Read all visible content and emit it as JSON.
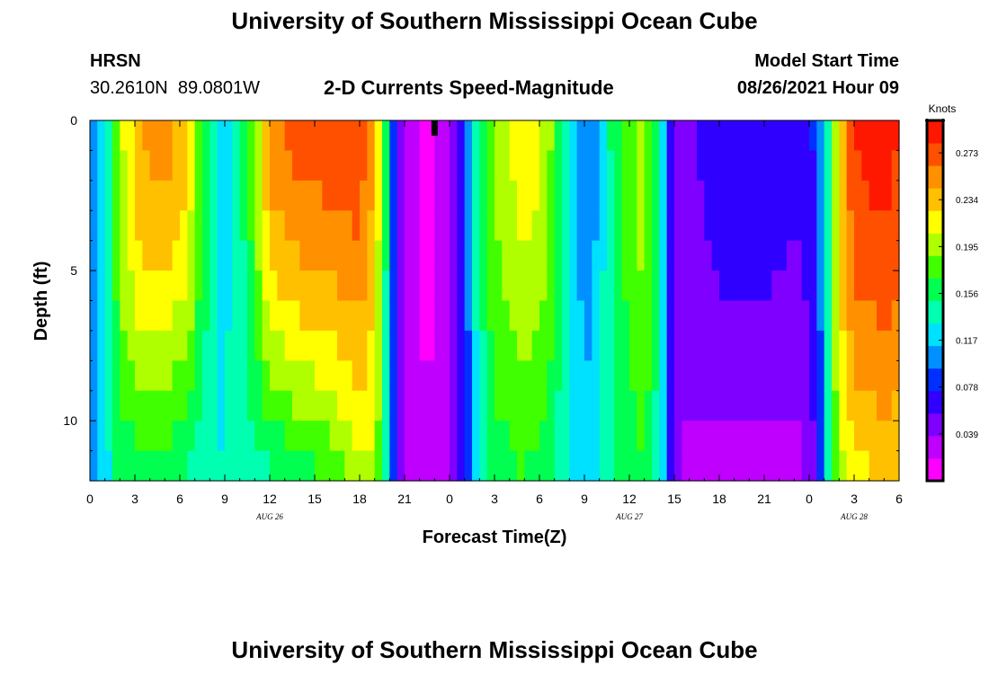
{
  "header": {
    "title": "University of Southern Mississippi Ocean Cube",
    "station": "HRSN",
    "coords": "30.2610N  89.0801W",
    "plot_title": "2-D Currents Speed-Magnitude",
    "model_label": "Model Start Time",
    "model_time": "08/26/2021 Hour 09"
  },
  "footer": {
    "title": "University of Southern Mississippi Ocean Cube"
  },
  "chart_data": {
    "type": "heatmap",
    "title": "2-D Currents Speed-Magnitude",
    "xlabel": "Forecast Time(Z)",
    "ylabel": "Depth (ft)",
    "x_tick_labels": [
      "0",
      "3",
      "6",
      "9",
      "12",
      "15",
      "18",
      "21",
      "0",
      "3",
      "6",
      "9",
      "12",
      "15",
      "18",
      "21",
      "0",
      "3",
      "6"
    ],
    "x_range_hours": [
      0,
      54
    ],
    "date_labels": [
      {
        "text": "AUG 26",
        "hour": 12
      },
      {
        "text": "AUG 27",
        "hour": 36
      },
      {
        "text": "AUG 28",
        "hour": 51
      }
    ],
    "y_tick_labels": [
      "0",
      "5",
      "10"
    ],
    "y_range_ft": [
      0,
      12
    ],
    "marker_hour": 23,
    "colorbar": {
      "unit": "Knots",
      "range": [
        0.0,
        0.3
      ],
      "tick_labels": [
        "0.273",
        "0.234",
        "0.195",
        "0.156",
        "0.117",
        "0.078",
        "0.039"
      ],
      "colors": [
        "#ff00ff",
        "#bf00ff",
        "#7f00ff",
        "#3000ff",
        "#0030ff",
        "#0090ff",
        "#00e0ff",
        "#00ffb0",
        "#00ff50",
        "#40ff00",
        "#b0ff00",
        "#ffff00",
        "#ffc000",
        "#ff9000",
        "#ff5000",
        "#ff1800"
      ]
    },
    "depth_levels_ft": [
      0.5,
      1.5,
      2.5,
      3.5,
      4.5,
      5.5,
      6.5,
      7.5,
      8.5,
      9.5,
      10.5,
      11.5
    ],
    "time_profiles": [
      {
        "hour": 0.0,
        "surface": 0.09,
        "bottom": 0.09
      },
      {
        "hour": 1.0,
        "surface": 0.12,
        "bottom": 0.12
      },
      {
        "hour": 2.0,
        "surface": 0.2,
        "bottom": 0.16
      },
      {
        "hour": 3.5,
        "surface": 0.245,
        "bottom": 0.16
      },
      {
        "hour": 5.0,
        "surface": 0.25,
        "bottom": 0.16
      },
      {
        "hour": 6.5,
        "surface": 0.23,
        "bottom": 0.15
      },
      {
        "hour": 7.5,
        "surface": 0.17,
        "bottom": 0.14
      },
      {
        "hour": 8.5,
        "surface": 0.125,
        "bottom": 0.13
      },
      {
        "hour": 9.5,
        "surface": 0.13,
        "bottom": 0.135
      },
      {
        "hour": 10.5,
        "surface": 0.16,
        "bottom": 0.14
      },
      {
        "hour": 12.0,
        "surface": 0.25,
        "bottom": 0.15
      },
      {
        "hour": 13.5,
        "surface": 0.265,
        "bottom": 0.16
      },
      {
        "hour": 15.5,
        "surface": 0.27,
        "bottom": 0.17
      },
      {
        "hour": 18.0,
        "surface": 0.275,
        "bottom": 0.2
      },
      {
        "hour": 19.0,
        "surface": 0.24,
        "bottom": 0.2
      },
      {
        "hour": 19.7,
        "surface": 0.16,
        "bottom": 0.15
      },
      {
        "hour": 20.2,
        "surface": 0.08,
        "bottom": 0.08
      },
      {
        "hour": 21.0,
        "surface": 0.035,
        "bottom": 0.035
      },
      {
        "hour": 22.5,
        "surface": 0.01,
        "bottom": 0.02
      },
      {
        "hour": 24.0,
        "surface": 0.03,
        "bottom": 0.035
      },
      {
        "hour": 25.0,
        "surface": 0.075,
        "bottom": 0.075
      },
      {
        "hour": 25.8,
        "surface": 0.14,
        "bottom": 0.13
      },
      {
        "hour": 27.0,
        "surface": 0.19,
        "bottom": 0.16
      },
      {
        "hour": 29.0,
        "surface": 0.22,
        "bottom": 0.17
      },
      {
        "hour": 30.5,
        "surface": 0.2,
        "bottom": 0.16
      },
      {
        "hour": 31.5,
        "surface": 0.15,
        "bottom": 0.14
      },
      {
        "hour": 32.5,
        "surface": 0.11,
        "bottom": 0.12
      },
      {
        "hour": 33.5,
        "surface": 0.1,
        "bottom": 0.12
      },
      {
        "hour": 35.0,
        "surface": 0.16,
        "bottom": 0.15
      },
      {
        "hour": 37.0,
        "surface": 0.2,
        "bottom": 0.17
      },
      {
        "hour": 38.0,
        "surface": 0.14,
        "bottom": 0.14
      },
      {
        "hour": 38.6,
        "surface": 0.08,
        "bottom": 0.08
      },
      {
        "hour": 39.5,
        "surface": 0.045,
        "bottom": 0.035
      },
      {
        "hour": 42.0,
        "surface": 0.07,
        "bottom": 0.03
      },
      {
        "hour": 45.0,
        "surface": 0.07,
        "bottom": 0.03
      },
      {
        "hour": 47.5,
        "surface": 0.06,
        "bottom": 0.03
      },
      {
        "hour": 48.5,
        "surface": 0.08,
        "bottom": 0.06
      },
      {
        "hour": 49.2,
        "surface": 0.13,
        "bottom": 0.14
      },
      {
        "hour": 50.0,
        "surface": 0.23,
        "bottom": 0.2
      },
      {
        "hour": 51.0,
        "surface": 0.28,
        "bottom": 0.22
      },
      {
        "hour": 53.0,
        "surface": 0.29,
        "bottom": 0.23
      },
      {
        "hour": 54.0,
        "surface": 0.28,
        "bottom": 0.23
      }
    ]
  }
}
